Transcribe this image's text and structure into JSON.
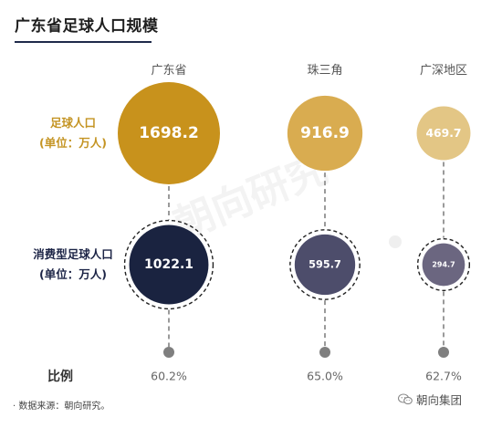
{
  "title": "广东省足球人口规模",
  "source": "· 数据来源：朝向研究。",
  "watermark": "朝向研究",
  "brand": "朝向集团",
  "ratio_label": "比例",
  "row_labels": {
    "football_population": [
      "足球人口",
      "(单位：万人)"
    ],
    "consumer_football_population": [
      "消费型足球人口",
      "(单位：万人)"
    ]
  },
  "chart_data": {
    "type": "bubble",
    "title": "广东省足球人口规模",
    "categories": [
      "广东省",
      "珠三角",
      "广深地区"
    ],
    "series": [
      {
        "name": "足球人口",
        "unit": "万人",
        "values": [
          1698.2,
          916.9,
          469.7
        ],
        "labels": [
          "1698.2",
          "916.9",
          "469.7"
        ],
        "colors": [
          "#c8921c",
          "#d9ac50",
          "#e3c685"
        ]
      },
      {
        "name": "消费型足球人口",
        "unit": "万人",
        "values": [
          1022.1,
          595.7,
          294.7
        ],
        "labels": [
          "1022.1",
          "595.7",
          "294.7"
        ],
        "colors": [
          "#1a2340",
          "#4d4d6b",
          "#6b6680"
        ]
      }
    ],
    "ratio": {
      "name": "比例",
      "values": [
        60.2,
        65.0,
        62.7
      ],
      "labels": [
        "60.2%",
        "65.0%",
        "62.7%"
      ]
    }
  }
}
